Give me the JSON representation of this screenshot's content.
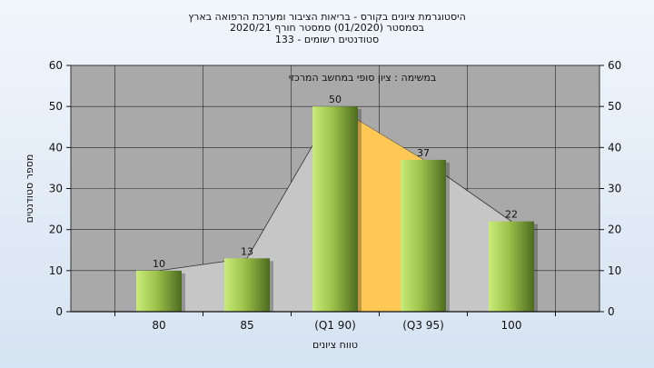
{
  "header": {
    "line1": "היסטוגרמת ציונים בקורס - בריאות הציבור ומערכת הרפואה בארץ",
    "line2": "בסמסטר  (01/2020)  סמסטר חורף  2020/21",
    "line3": "סטודנטים רשומים - 133"
  },
  "chart_data": {
    "type": "bar",
    "inner_title": "במשימה : ציון סופי במחשב המרכזי",
    "categories": [
      "80",
      "85",
      "(Q1 90)",
      "(Q3 95)",
      "100"
    ],
    "values": [
      10,
      13,
      50,
      37,
      22
    ],
    "data_labels": [
      "10",
      "13",
      "50",
      "37",
      "22"
    ],
    "xlabel": "טווח ציונים",
    "ylabel": "מספר סטודנטים",
    "ylim": [
      0,
      60
    ],
    "yticks": [
      0,
      10,
      20,
      30,
      40,
      50,
      60
    ],
    "ytick_labels": [
      "0",
      "10",
      "20",
      "30",
      "40",
      "50",
      "60"
    ],
    "grid": true,
    "highlight_range": [
      "(Q1 90)",
      "(Q3 95)"
    ],
    "colors": {
      "plot_bg": "#a9a9a9",
      "area": "#c6c6c6",
      "highlight": "#ffc855",
      "bar_light": "#c9ec7a",
      "bar_dark": "#4d6b1f"
    }
  }
}
